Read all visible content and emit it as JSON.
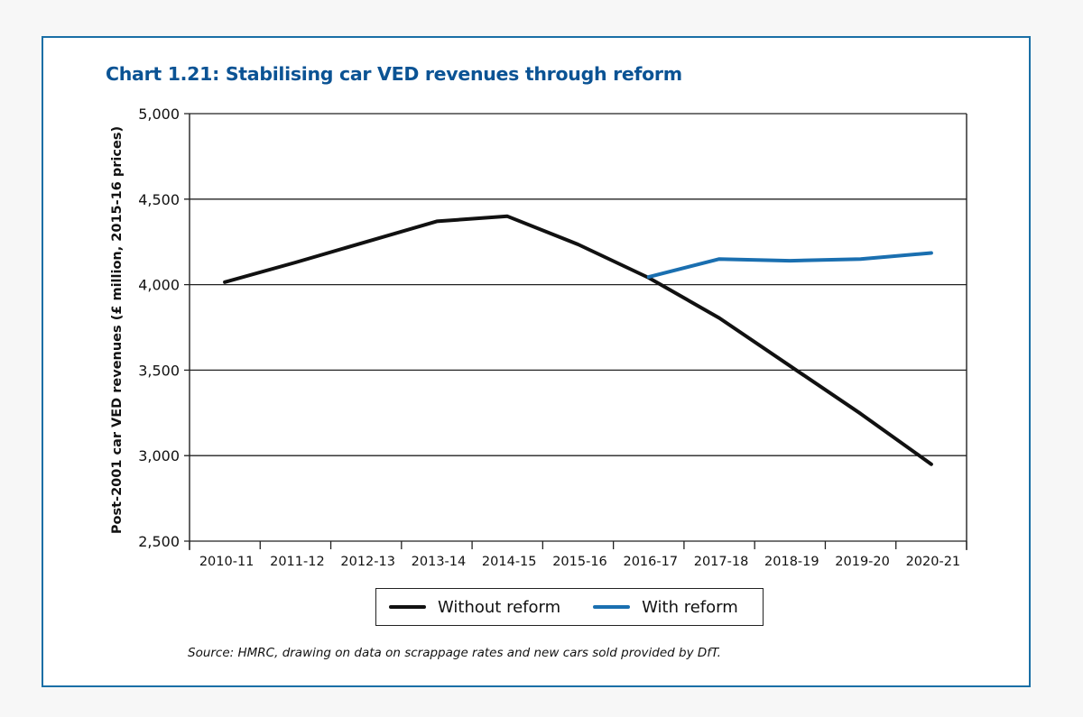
{
  "chart_data": {
    "type": "line",
    "title": "Chart 1.21: Stabilising car VED revenues through reform",
    "xlabel": "",
    "ylabel": "Post-2001 car VED revenues (£ million, 2015-16 prices)",
    "ylim": [
      2500,
      5000
    ],
    "yticks": [
      5000,
      4500,
      4000,
      3500,
      3000,
      2500
    ],
    "ytick_labels": [
      "5,000",
      "4,500",
      "4,000",
      "3,500",
      "3,000",
      "2,500"
    ],
    "grid": true,
    "legend_position": "bottom-center",
    "categories": [
      "2010-11",
      "2011-12",
      "2012-13",
      "2013-14",
      "2014-15",
      "2015-16",
      "2016-17",
      "2017-18",
      "2018-19",
      "2019-20",
      "2020-21"
    ],
    "series": [
      {
        "name": "Without reform",
        "color": "#111111",
        "values": [
          4015,
          4130,
          4250,
          4370,
          4400,
          4235,
          4040,
          3805,
          3525,
          3245,
          2950
        ]
      },
      {
        "name": "With reform",
        "color": "#1a6fb0",
        "values": [
          null,
          null,
          null,
          null,
          null,
          null,
          4045,
          4150,
          4140,
          4150,
          4185
        ]
      }
    ],
    "source": "Source: HMRC, drawing on data on scrappage rates and new cars sold provided by DfT."
  },
  "colors": {
    "frame_border": "#1a6fa6",
    "title": "#0b5394"
  }
}
